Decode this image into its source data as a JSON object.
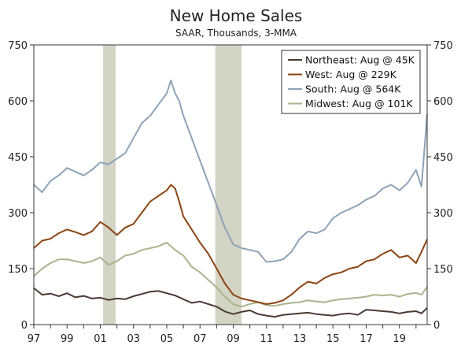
{
  "chart_data": {
    "type": "line",
    "title": "New Home Sales",
    "subtitle": "SAAR, Thousands, 3-MMA",
    "xlabel": "",
    "ylabel": "",
    "ylim": [
      0,
      750
    ],
    "y_ticks": [
      0,
      150,
      300,
      450,
      600,
      750
    ],
    "y_tick_labels": [
      "0",
      "150",
      "300",
      "450",
      "600",
      "750"
    ],
    "x_range": [
      1997.0,
      2020.67
    ],
    "x_ticks": [
      1997,
      1999,
      2001,
      2003,
      2005,
      2007,
      2009,
      2011,
      2013,
      2015,
      2017,
      2019
    ],
    "x_tick_labels": [
      "97",
      "99",
      "01",
      "03",
      "05",
      "07",
      "09",
      "11",
      "13",
      "15",
      "17",
      "19"
    ],
    "recessions": [
      [
        2001.17,
        2001.92
      ],
      [
        2007.92,
        2009.5
      ]
    ],
    "legend_position": "top-right",
    "series": [
      {
        "name": "Northeast",
        "legend": "Northeast: Aug @ 45K",
        "color": "#4a3b33",
        "x": [
          1997.0,
          1997.5,
          1998.0,
          1998.5,
          1999.0,
          1999.5,
          2000.0,
          2000.5,
          2001.0,
          2001.5,
          2002.0,
          2002.5,
          2003.0,
          2003.5,
          2004.0,
          2004.5,
          2005.0,
          2005.5,
          2006.0,
          2006.5,
          2007.0,
          2007.5,
          2008.0,
          2008.5,
          2009.0,
          2009.5,
          2010.0,
          2010.5,
          2011.0,
          2011.5,
          2012.0,
          2012.5,
          2013.0,
          2013.5,
          2014.0,
          2014.5,
          2015.0,
          2015.5,
          2016.0,
          2016.5,
          2017.0,
          2017.5,
          2018.0,
          2018.5,
          2019.0,
          2019.5,
          2020.0,
          2020.33,
          2020.67
        ],
        "values": [
          98,
          80,
          83,
          76,
          84,
          73,
          77,
          70,
          72,
          66,
          70,
          68,
          76,
          82,
          88,
          90,
          84,
          78,
          68,
          58,
          62,
          55,
          48,
          35,
          28,
          34,
          38,
          28,
          24,
          21,
          26,
          28,
          30,
          32,
          28,
          26,
          24,
          28,
          30,
          26,
          40,
          38,
          36,
          34,
          30,
          34,
          36,
          30,
          45
        ]
      },
      {
        "name": "West",
        "legend": "West: Aug @ 229K",
        "color": "#8b4513",
        "x": [
          1997.0,
          1997.5,
          1998.0,
          1998.5,
          1999.0,
          1999.5,
          2000.0,
          2000.5,
          2001.0,
          2001.5,
          2002.0,
          2002.5,
          2003.0,
          2003.5,
          2004.0,
          2004.5,
          2005.0,
          2005.25,
          2005.5,
          2005.75,
          2006.0,
          2006.5,
          2007.0,
          2007.5,
          2008.0,
          2008.5,
          2009.0,
          2009.5,
          2010.0,
          2010.5,
          2011.0,
          2011.5,
          2012.0,
          2012.5,
          2013.0,
          2013.5,
          2014.0,
          2014.5,
          2015.0,
          2015.5,
          2016.0,
          2016.5,
          2017.0,
          2017.5,
          2018.0,
          2018.5,
          2019.0,
          2019.5,
          2020.0,
          2020.33,
          2020.67
        ],
        "values": [
          205,
          225,
          230,
          245,
          255,
          248,
          240,
          250,
          275,
          260,
          240,
          260,
          270,
          300,
          330,
          345,
          360,
          375,
          365,
          330,
          290,
          255,
          220,
          190,
          150,
          110,
          80,
          70,
          65,
          60,
          55,
          58,
          65,
          80,
          100,
          115,
          110,
          125,
          135,
          140,
          150,
          155,
          170,
          175,
          190,
          200,
          180,
          185,
          165,
          195,
          229
        ]
      },
      {
        "name": "South",
        "legend": "South: Aug @ 564K",
        "color": "#8da3b8",
        "x": [
          1997.0,
          1997.5,
          1998.0,
          1998.5,
          1999.0,
          1999.5,
          2000.0,
          2000.5,
          2001.0,
          2001.5,
          2002.0,
          2002.5,
          2003.0,
          2003.5,
          2004.0,
          2004.5,
          2005.0,
          2005.25,
          2005.5,
          2005.75,
          2006.0,
          2006.5,
          2007.0,
          2007.5,
          2008.0,
          2008.5,
          2009.0,
          2009.5,
          2010.0,
          2010.5,
          2011.0,
          2011.5,
          2012.0,
          2012.5,
          2013.0,
          2013.5,
          2014.0,
          2014.5,
          2015.0,
          2015.5,
          2016.0,
          2016.5,
          2017.0,
          2017.5,
          2018.0,
          2018.5,
          2019.0,
          2019.5,
          2020.0,
          2020.33,
          2020.67
        ],
        "values": [
          375,
          355,
          385,
          400,
          420,
          410,
          400,
          415,
          435,
          430,
          445,
          460,
          500,
          540,
          560,
          590,
          620,
          655,
          620,
          600,
          560,
          500,
          440,
          380,
          320,
          260,
          215,
          205,
          200,
          195,
          168,
          170,
          175,
          195,
          230,
          250,
          245,
          255,
          285,
          300,
          310,
          320,
          335,
          345,
          365,
          375,
          360,
          380,
          415,
          370,
          564
        ]
      },
      {
        "name": "Midwest",
        "legend": "Midwest: Aug @ 101K",
        "color": "#a9b48e",
        "x": [
          1997.0,
          1997.5,
          1998.0,
          1998.5,
          1999.0,
          1999.5,
          2000.0,
          2000.5,
          2001.0,
          2001.5,
          2002.0,
          2002.5,
          2003.0,
          2003.5,
          2004.0,
          2004.5,
          2005.0,
          2005.5,
          2006.0,
          2006.5,
          2007.0,
          2007.5,
          2008.0,
          2008.5,
          2009.0,
          2009.5,
          2010.0,
          2010.5,
          2011.0,
          2011.5,
          2012.0,
          2012.5,
          2013.0,
          2013.5,
          2014.0,
          2014.5,
          2015.0,
          2015.5,
          2016.0,
          2016.5,
          2017.0,
          2017.5,
          2018.0,
          2018.5,
          2019.0,
          2019.5,
          2020.0,
          2020.33,
          2020.67
        ],
        "values": [
          130,
          150,
          165,
          175,
          175,
          170,
          165,
          170,
          180,
          160,
          170,
          185,
          190,
          200,
          205,
          210,
          220,
          200,
          185,
          155,
          140,
          120,
          100,
          75,
          55,
          48,
          55,
          60,
          52,
          50,
          55,
          58,
          60,
          65,
          62,
          60,
          65,
          68,
          70,
          72,
          75,
          80,
          78,
          80,
          75,
          82,
          85,
          80,
          101
        ]
      }
    ]
  }
}
